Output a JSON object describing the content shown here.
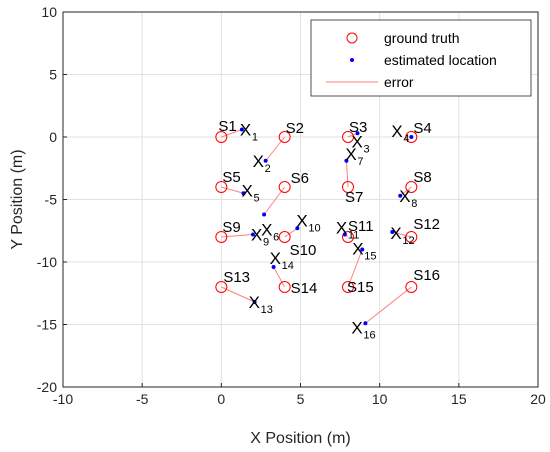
{
  "chart_data": {
    "type": "scatter",
    "title": "",
    "xlabel": "X Position (m)",
    "ylabel": "Y Position (m)",
    "xlim": [
      -10,
      20
    ],
    "ylim": [
      -20,
      10
    ],
    "xticks": [
      -10,
      -5,
      0,
      5,
      10,
      15,
      20
    ],
    "yticks": [
      -20,
      -15,
      -10,
      -5,
      0,
      5,
      10
    ],
    "grid": true,
    "legend_position": "top-right",
    "colors": {
      "ground_truth": "#ff0000",
      "estimated": "#0000ff",
      "error": "#ff8080"
    },
    "legend": [
      {
        "key": "ground_truth",
        "label": "ground truth"
      },
      {
        "key": "estimated",
        "label": "estimated location"
      },
      {
        "key": "error",
        "label": "error"
      }
    ],
    "ground_truth": [
      {
        "id": "1",
        "label": "S1",
        "x": 0,
        "y": 0
      },
      {
        "id": "2",
        "label": "S2",
        "x": 4,
        "y": 0
      },
      {
        "id": "3",
        "label": "S3",
        "x": 8,
        "y": 0
      },
      {
        "id": "4",
        "label": "S4",
        "x": 12,
        "y": 0
      },
      {
        "id": "5",
        "label": "S5",
        "x": 0,
        "y": -4
      },
      {
        "id": "6",
        "label": "S6",
        "x": 4,
        "y": -4
      },
      {
        "id": "7",
        "label": "S7",
        "x": 8,
        "y": -4
      },
      {
        "id": "8",
        "label": "S8",
        "x": 12,
        "y": -4
      },
      {
        "id": "9",
        "label": "S9",
        "x": 0,
        "y": -8
      },
      {
        "id": "10",
        "label": "S10",
        "x": 4,
        "y": -8
      },
      {
        "id": "11",
        "label": "S11",
        "x": 8,
        "y": -8
      },
      {
        "id": "12",
        "label": "S12",
        "x": 12,
        "y": -8
      },
      {
        "id": "13",
        "label": "S13",
        "x": 0,
        "y": -12
      },
      {
        "id": "14",
        "label": "S14",
        "x": 4,
        "y": -12
      },
      {
        "id": "15",
        "label": "S15",
        "x": 8,
        "y": -12
      },
      {
        "id": "16",
        "label": "S16",
        "x": 12,
        "y": -12
      }
    ],
    "estimated": [
      {
        "id": "1",
        "label": "X",
        "sub": "1",
        "x": 1.3,
        "y": 0.6
      },
      {
        "id": "2",
        "label": "X",
        "sub": "2",
        "x": 2.8,
        "y": -1.9
      },
      {
        "id": "3",
        "label": "X",
        "sub": "3",
        "x": 8.6,
        "y": 0.3
      },
      {
        "id": "4",
        "label": "X",
        "sub": "4",
        "x": 12,
        "y": 0
      },
      {
        "id": "5",
        "label": "X",
        "sub": "5",
        "x": 1.4,
        "y": -4.5
      },
      {
        "id": "6",
        "label": "X",
        "sub": "6",
        "x": 2.7,
        "y": -6.2
      },
      {
        "id": "7",
        "label": "X",
        "sub": "7",
        "x": 7.9,
        "y": -1.9
      },
      {
        "id": "8",
        "label": "X",
        "sub": "8",
        "x": 11.3,
        "y": -4.7
      },
      {
        "id": "9",
        "label": "X",
        "sub": "9",
        "x": 2.0,
        "y": -7.8
      },
      {
        "id": "10",
        "label": "X",
        "sub": "10",
        "x": 4.8,
        "y": -7.3
      },
      {
        "id": "11",
        "label": "X",
        "sub": "11",
        "x": 7.8,
        "y": -7.8
      },
      {
        "id": "12",
        "label": "X",
        "sub": "12",
        "x": 10.8,
        "y": -7.6
      },
      {
        "id": "13",
        "label": "X",
        "sub": "13",
        "x": 2.1,
        "y": -13.2
      },
      {
        "id": "14",
        "label": "X",
        "sub": "14",
        "x": 3.3,
        "y": -10.4
      },
      {
        "id": "15",
        "label": "X",
        "sub": "15",
        "x": 8.9,
        "y": -9.0
      },
      {
        "id": "16",
        "label": "X",
        "sub": "16",
        "x": 9.1,
        "y": -14.9
      }
    ]
  }
}
